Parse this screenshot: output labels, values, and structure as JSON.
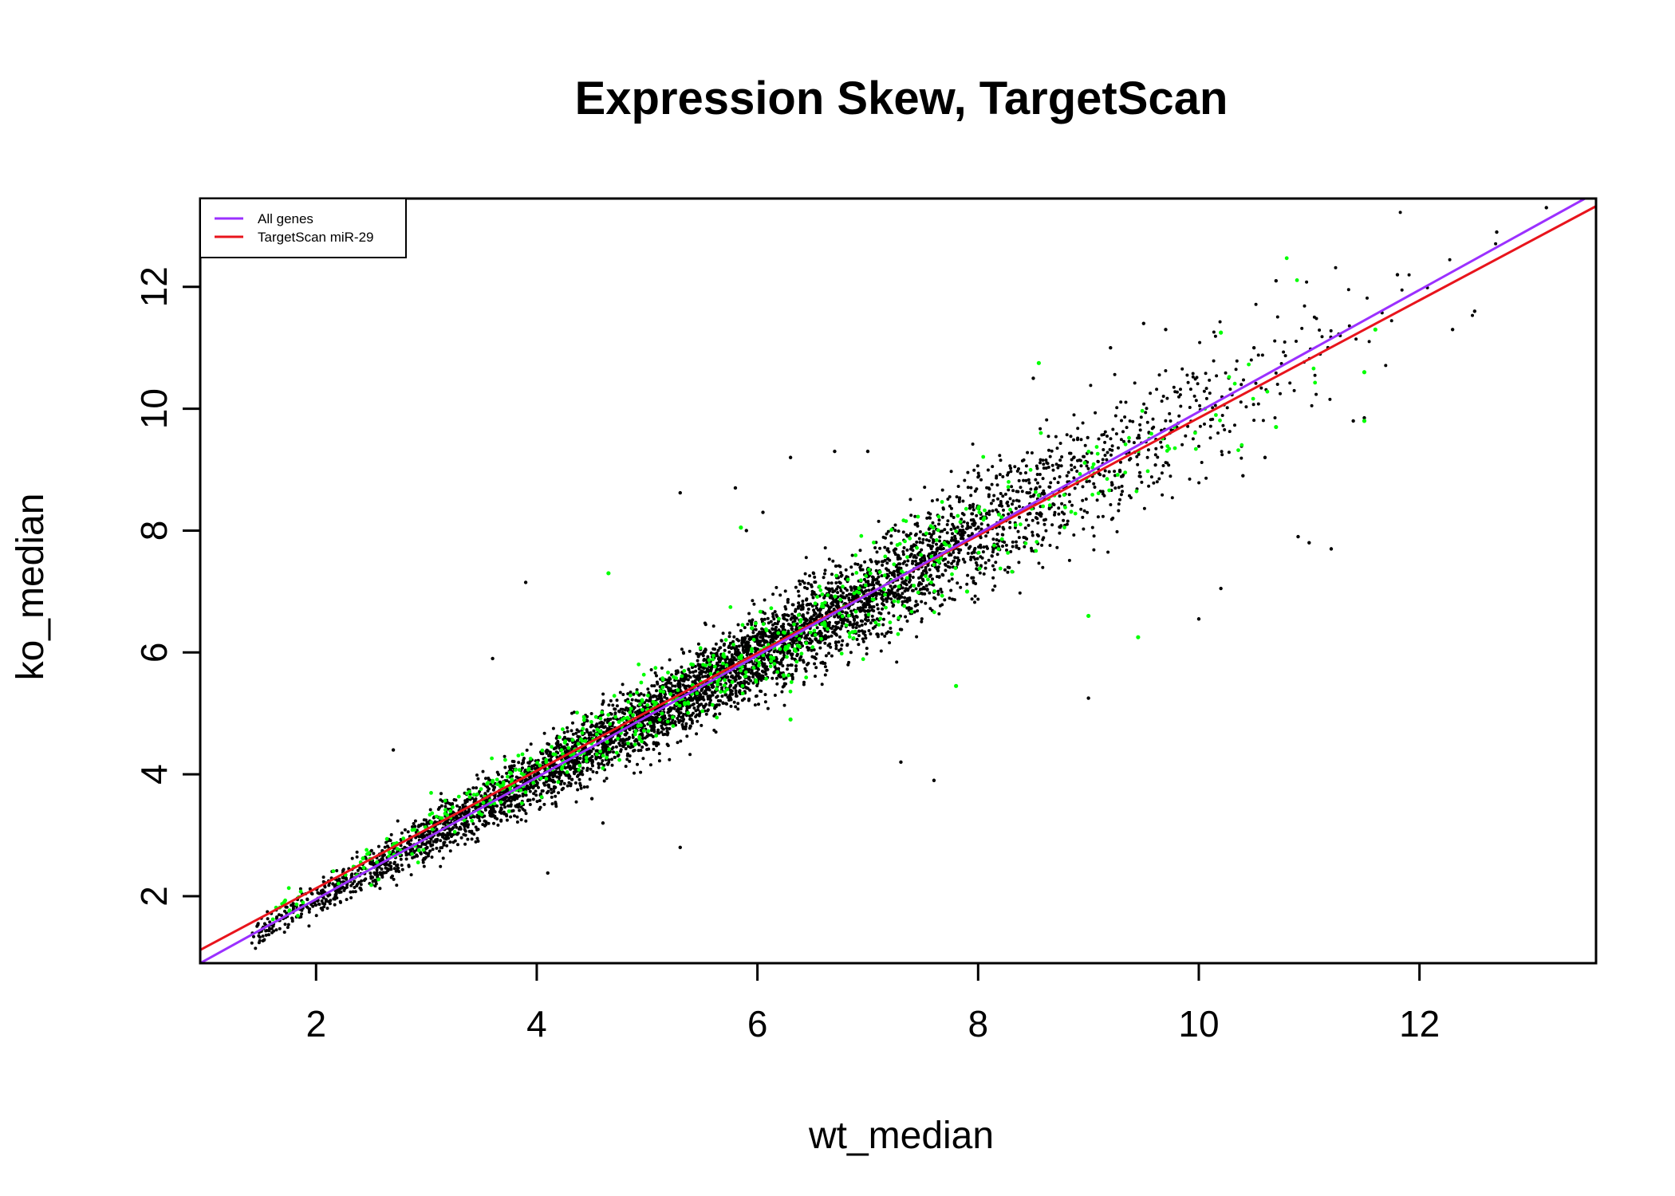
{
  "chart_data": {
    "type": "scatter",
    "title": "Expression Skew, TargetScan",
    "xlabel": "wt_median",
    "ylabel": "ko_median",
    "xlim": [
      0.95,
      13.6
    ],
    "ylim": [
      0.9,
      13.45
    ],
    "xticks": [
      2,
      4,
      6,
      8,
      10,
      12
    ],
    "yticks": [
      2,
      4,
      6,
      8,
      10,
      12
    ],
    "xtick_labels": [
      "2",
      "4",
      "6",
      "8",
      "10",
      "12"
    ],
    "ytick_labels": [
      "2",
      "4",
      "6",
      "8",
      "10",
      "12"
    ],
    "grid": false,
    "legend_position": "top-left",
    "series": [
      {
        "name": "All genes",
        "kind": "points+fit",
        "point_color": "#000000",
        "line_color": "#9b30ff",
        "x_range": [
          1.4,
          13.2
        ],
        "fit": {
          "slope": 1.0,
          "intercept": -0.05
        }
      },
      {
        "name": "TargetScan miR-29",
        "kind": "points+fit",
        "point_color": "#00ff00",
        "line_color": "#e8141c",
        "x_range": [
          1.6,
          11.7
        ],
        "fit": {
          "slope": 0.965,
          "intercept": 0.2
        }
      }
    ],
    "outliers": [
      [
        5.3,
        8.62
      ],
      [
        3.9,
        7.15
      ],
      [
        4.1,
        2.38
      ],
      [
        5.3,
        2.8
      ],
      [
        3.6,
        5.9
      ],
      [
        5.8,
        8.7
      ],
      [
        6.3,
        9.2
      ],
      [
        5.9,
        8.0
      ],
      [
        6.7,
        9.3
      ],
      [
        7.3,
        4.2
      ],
      [
        7.6,
        3.9
      ],
      [
        7.0,
        9.3
      ],
      [
        8.5,
        10.5
      ],
      [
        9.5,
        11.4
      ],
      [
        9.2,
        11.0
      ],
      [
        10.2,
        7.05
      ],
      [
        10.0,
        6.55
      ],
      [
        9.0,
        5.25
      ],
      [
        10.9,
        7.9
      ],
      [
        11.0,
        7.8
      ],
      [
        11.2,
        7.7
      ],
      [
        10.4,
        8.9
      ],
      [
        10.6,
        9.2
      ],
      [
        11.4,
        9.8
      ],
      [
        12.3,
        11.3
      ],
      [
        12.5,
        11.6
      ],
      [
        12.7,
        12.9
      ],
      [
        13.15,
        13.3
      ],
      [
        10.7,
        12.1
      ],
      [
        11.8,
        12.2
      ],
      [
        8.55,
        10.75
      ],
      [
        4.5,
        3.6
      ],
      [
        4.6,
        3.2
      ],
      [
        2.7,
        4.4
      ],
      [
        9.7,
        11.3
      ],
      [
        10.5,
        11.0
      ],
      [
        9.8,
        9.7
      ],
      [
        6.05,
        8.3
      ],
      [
        11.5,
        9.85
      ]
    ],
    "highlighted_outliers": [
      [
        8.55,
        10.75
      ],
      [
        4.65,
        7.3
      ],
      [
        5.85,
        8.05
      ],
      [
        9.45,
        6.25
      ],
      [
        9.0,
        6.6
      ],
      [
        7.8,
        5.45
      ],
      [
        11.5,
        9.8
      ],
      [
        11.5,
        10.6
      ],
      [
        10.7,
        9.7
      ],
      [
        10.2,
        11.25
      ],
      [
        11.6,
        11.3
      ],
      [
        6.3,
        4.9
      ],
      [
        5.95,
        6.4
      ],
      [
        7.9,
        7.0
      ]
    ],
    "legend": {
      "entries": [
        {
          "label": "All genes",
          "color": "#9b30ff"
        },
        {
          "label": "TargetScan miR-29",
          "color": "#e8141c"
        }
      ]
    }
  }
}
